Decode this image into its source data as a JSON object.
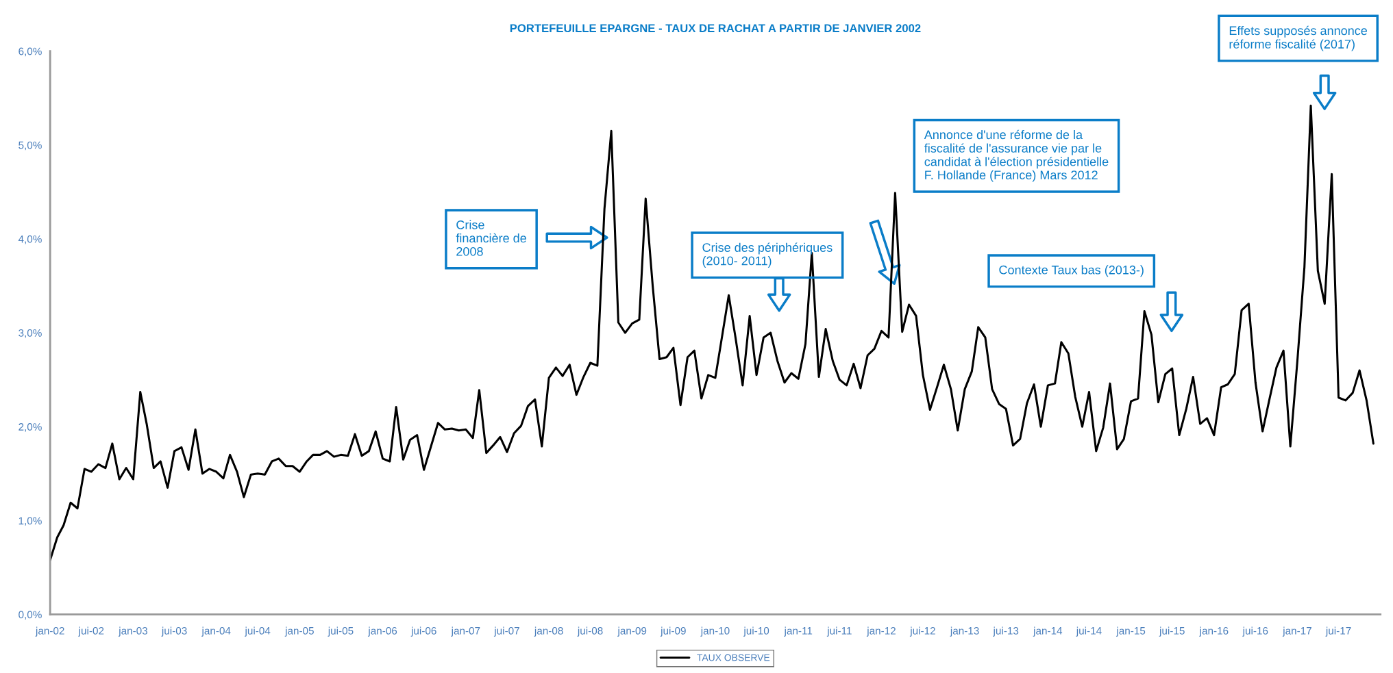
{
  "chart_data": {
    "type": "line",
    "title": "PORTEFEUILLE EPARGNE - TAUX DE RACHAT A PARTIR DE JANVIER 2002",
    "x": [
      "2002-01",
      "2002-02",
      "2002-03",
      "2002-04",
      "2002-05",
      "2002-06",
      "2002-07",
      "2002-08",
      "2002-09",
      "2002-10",
      "2002-11",
      "2002-12",
      "2003-01",
      "2003-02",
      "2003-03",
      "2003-04",
      "2003-05",
      "2003-06",
      "2003-07",
      "2003-08",
      "2003-09",
      "2003-10",
      "2003-11",
      "2003-12",
      "2004-01",
      "2004-02",
      "2004-03",
      "2004-04",
      "2004-05",
      "2004-06",
      "2004-07",
      "2004-08",
      "2004-09",
      "2004-10",
      "2004-11",
      "2004-12",
      "2005-01",
      "2005-02",
      "2005-03",
      "2005-04",
      "2005-05",
      "2005-06",
      "2005-07",
      "2005-08",
      "2005-09",
      "2005-10",
      "2005-11",
      "2005-12",
      "2006-01",
      "2006-02",
      "2006-03",
      "2006-04",
      "2006-05",
      "2006-06",
      "2006-07",
      "2006-08",
      "2006-09",
      "2006-10",
      "2006-11",
      "2006-12",
      "2007-01",
      "2007-02",
      "2007-03",
      "2007-04",
      "2007-05",
      "2007-06",
      "2007-07",
      "2007-08",
      "2007-09",
      "2007-10",
      "2007-11",
      "2007-12",
      "2008-01",
      "2008-02",
      "2008-03",
      "2008-04",
      "2008-05",
      "2008-06",
      "2008-07",
      "2008-08",
      "2008-09",
      "2008-10",
      "2008-11",
      "2008-12",
      "2009-01",
      "2009-02",
      "2009-03",
      "2009-04",
      "2009-05",
      "2009-06",
      "2009-07",
      "2009-08",
      "2009-09",
      "2009-10",
      "2009-11",
      "2009-12",
      "2010-01",
      "2010-02",
      "2010-03",
      "2010-04",
      "2010-05",
      "2010-06",
      "2010-07",
      "2010-08",
      "2010-09",
      "2010-10",
      "2010-11",
      "2010-12",
      "2011-01",
      "2011-02",
      "2011-03",
      "2011-04",
      "2011-05",
      "2011-06",
      "2011-07",
      "2011-08",
      "2011-09",
      "2011-10",
      "2011-11",
      "2011-12",
      "2012-01",
      "2012-02",
      "2012-03",
      "2012-04",
      "2012-05",
      "2012-06",
      "2012-07",
      "2012-08",
      "2012-09",
      "2012-10",
      "2012-11",
      "2012-12",
      "2013-01",
      "2013-02",
      "2013-03",
      "2013-04",
      "2013-05",
      "2013-06",
      "2013-07",
      "2013-08",
      "2013-09",
      "2013-10",
      "2013-11",
      "2013-12",
      "2014-01",
      "2014-02",
      "2014-03",
      "2014-04",
      "2014-05",
      "2014-06",
      "2014-07",
      "2014-08",
      "2014-09",
      "2014-10",
      "2014-11",
      "2014-12",
      "2015-01",
      "2015-02",
      "2015-03",
      "2015-04",
      "2015-05",
      "2015-06",
      "2015-07",
      "2015-08",
      "2015-09",
      "2015-10",
      "2015-11",
      "2015-12",
      "2016-01",
      "2016-02",
      "2016-03",
      "2016-04",
      "2016-05",
      "2016-06",
      "2016-07",
      "2016-08",
      "2016-09",
      "2016-10",
      "2016-11",
      "2016-12",
      "2017-01",
      "2017-02",
      "2017-03",
      "2017-04",
      "2017-05",
      "2017-06",
      "2017-07",
      "2017-08",
      "2017-09",
      "2017-10",
      "2017-11",
      "2017-12"
    ],
    "series": [
      {
        "name": "TAUX OBSERVE",
        "color": "#000000",
        "values": [
          0.58,
          0.82,
          0.95,
          1.19,
          1.13,
          1.55,
          1.52,
          1.6,
          1.56,
          1.82,
          1.44,
          1.56,
          1.44,
          2.37,
          2.03,
          1.56,
          1.63,
          1.35,
          1.74,
          1.78,
          1.54,
          1.97,
          1.5,
          1.55,
          1.52,
          1.45,
          1.7,
          1.52,
          1.25,
          1.49,
          1.5,
          1.49,
          1.63,
          1.66,
          1.58,
          1.58,
          1.52,
          1.63,
          1.7,
          1.7,
          1.74,
          1.68,
          1.7,
          1.69,
          1.92,
          1.69,
          1.74,
          1.95,
          1.66,
          1.63,
          2.21,
          1.65,
          1.86,
          1.91,
          1.54,
          1.79,
          2.04,
          1.97,
          1.98,
          1.96,
          1.97,
          1.88,
          2.39,
          1.72,
          1.8,
          1.89,
          1.73,
          1.93,
          2.01,
          2.22,
          2.29,
          1.79,
          2.52,
          2.63,
          2.54,
          2.66,
          2.34,
          2.53,
          2.68,
          2.65,
          4.32,
          5.15,
          3.11,
          3.0,
          3.1,
          3.14,
          4.43,
          3.5,
          2.72,
          2.74,
          2.84,
          2.23,
          2.74,
          2.81,
          2.3,
          2.55,
          2.52,
          2.98,
          3.4,
          2.93,
          2.44,
          3.18,
          2.55,
          2.95,
          3.0,
          2.7,
          2.47,
          2.57,
          2.51,
          2.88,
          3.85,
          2.53,
          3.04,
          2.7,
          2.5,
          2.44,
          2.67,
          2.41,
          2.76,
          2.83,
          3.02,
          2.95,
          4.49,
          3.01,
          3.3,
          3.18,
          2.55,
          2.18,
          2.42,
          2.66,
          2.4,
          1.96,
          2.4,
          2.59,
          3.06,
          2.95,
          2.4,
          2.24,
          2.19,
          1.8,
          1.87,
          2.25,
          2.45,
          2.0,
          2.44,
          2.46,
          2.9,
          2.78,
          2.32,
          2.0,
          2.37,
          1.74,
          1.99,
          2.46,
          1.76,
          1.87,
          2.27,
          2.3,
          3.23,
          2.98,
          2.26,
          2.56,
          2.62,
          1.91,
          2.19,
          2.53,
          2.03,
          2.09,
          1.91,
          2.42,
          2.45,
          2.56,
          3.24,
          3.31,
          2.47,
          1.95,
          2.3,
          2.63,
          2.81,
          1.79,
          2.7,
          3.7,
          5.42,
          3.66,
          3.31,
          4.69,
          2.31,
          2.28,
          2.36,
          2.6,
          2.28,
          1.82
        ]
      }
    ],
    "xlim": [
      "2002-01",
      "2018-01"
    ],
    "xticks": [
      {
        "value": "2002-01",
        "label": "jan-02"
      },
      {
        "value": "2002-07",
        "label": "jui-02"
      },
      {
        "value": "2003-01",
        "label": "jan-03"
      },
      {
        "value": "2003-07",
        "label": "jui-03"
      },
      {
        "value": "2004-01",
        "label": "jan-04"
      },
      {
        "value": "2004-07",
        "label": "jui-04"
      },
      {
        "value": "2005-01",
        "label": "jan-05"
      },
      {
        "value": "2005-07",
        "label": "jui-05"
      },
      {
        "value": "2006-01",
        "label": "jan-06"
      },
      {
        "value": "2006-07",
        "label": "jui-06"
      },
      {
        "value": "2007-01",
        "label": "jan-07"
      },
      {
        "value": "2007-07",
        "label": "jui-07"
      },
      {
        "value": "2008-01",
        "label": "jan-08"
      },
      {
        "value": "2008-07",
        "label": "jui-08"
      },
      {
        "value": "2009-01",
        "label": "jan-09"
      },
      {
        "value": "2009-07",
        "label": "jui-09"
      },
      {
        "value": "2010-01",
        "label": "jan-10"
      },
      {
        "value": "2010-07",
        "label": "jui-10"
      },
      {
        "value": "2011-01",
        "label": "jan-11"
      },
      {
        "value": "2011-07",
        "label": "jui-11"
      },
      {
        "value": "2012-01",
        "label": "jan-12"
      },
      {
        "value": "2012-07",
        "label": "jui-12"
      },
      {
        "value": "2013-01",
        "label": "jan-13"
      },
      {
        "value": "2013-07",
        "label": "jui-13"
      },
      {
        "value": "2014-01",
        "label": "jan-14"
      },
      {
        "value": "2014-07",
        "label": "jui-14"
      },
      {
        "value": "2015-01",
        "label": "jan-15"
      },
      {
        "value": "2015-07",
        "label": "jui-15"
      },
      {
        "value": "2016-01",
        "label": "jan-16"
      },
      {
        "value": "2016-07",
        "label": "jui-16"
      },
      {
        "value": "2017-01",
        "label": "jan-17"
      },
      {
        "value": "2017-07",
        "label": "jui-17"
      }
    ],
    "ylim": [
      0,
      6
    ],
    "yticks": [
      {
        "value": 0,
        "label": "0,0%"
      },
      {
        "value": 1,
        "label": "1,0%"
      },
      {
        "value": 2,
        "label": "2,0%"
      },
      {
        "value": 3,
        "label": "3,0%"
      },
      {
        "value": 4,
        "label": "4,0%"
      },
      {
        "value": 5,
        "label": "5,0%"
      },
      {
        "value": 6,
        "label": "6,0%"
      }
    ],
    "grid": false,
    "legend": "bottom",
    "marker": "none",
    "line_style": "solid",
    "annotations": [
      "Crise\nfinancière de\n2008",
      "Crise des périphériques\n(2010- 2011)",
      "Annonce d'une réforme de la\nfiscalité de l'assurance vie par le\ncandidat à l'élection présidentielle\nF. Hollande (France) Mars 2012",
      "Contexte Taux bas (2013-)",
      "Effets supposés annonce\nréforme fiscalité (2017)"
    ]
  }
}
